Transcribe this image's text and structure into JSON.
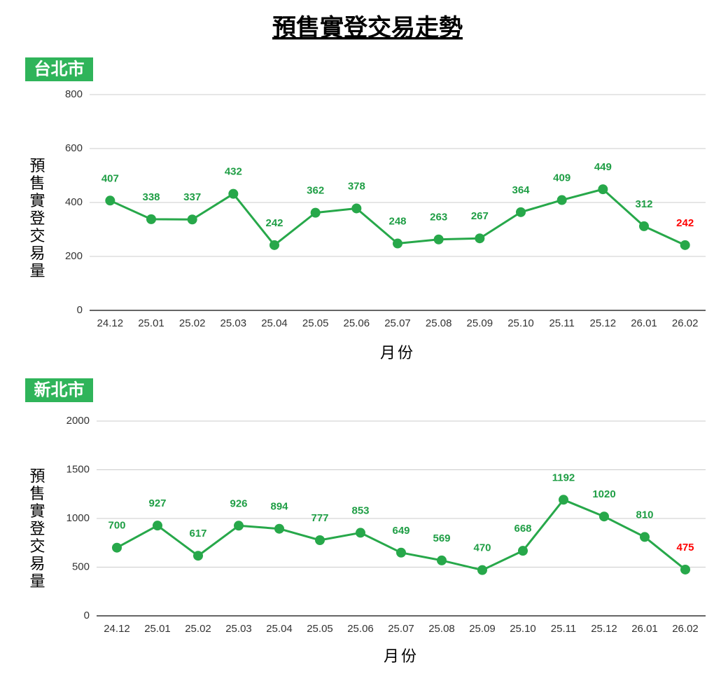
{
  "title": "預售實登交易走勢",
  "chart_data": [
    {
      "type": "line",
      "region": "台北市",
      "y_label": "預售實登交易量",
      "x_label": "月份",
      "categories": [
        "24.12",
        "25.01",
        "25.02",
        "25.03",
        "25.04",
        "25.05",
        "25.06",
        "25.07",
        "25.08",
        "25.09",
        "25.10",
        "25.11",
        "25.12",
        "26.01",
        "26.02"
      ],
      "values": [
        407,
        338,
        337,
        432,
        242,
        362,
        378,
        248,
        263,
        267,
        364,
        409,
        449,
        312,
        242
      ],
      "color": "#27a84a",
      "label_color": "#1f9e45",
      "latest_color": "#ff0000",
      "ylim": [
        0,
        800
      ],
      "yticks": [
        0,
        200,
        400,
        600,
        800
      ],
      "grid": true
    },
    {
      "type": "line",
      "region": "新北市",
      "y_label": "預售實登交易量",
      "x_label": "月份",
      "categories": [
        "24.12",
        "25.01",
        "25.02",
        "25.03",
        "25.04",
        "25.05",
        "25.06",
        "25.07",
        "25.08",
        "25.09",
        "25.10",
        "25.11",
        "25.12",
        "26.01",
        "26.02"
      ],
      "values": [
        700,
        927,
        617,
        926,
        894,
        777,
        853,
        649,
        569,
        470,
        668,
        1192,
        1020,
        810,
        475
      ],
      "color": "#27a84a",
      "label_color": "#1f9e45",
      "latest_color": "#ff0000",
      "ylim": [
        0,
        2000
      ],
      "yticks": [
        0,
        500,
        1000,
        1500,
        2000
      ],
      "grid": true
    }
  ]
}
